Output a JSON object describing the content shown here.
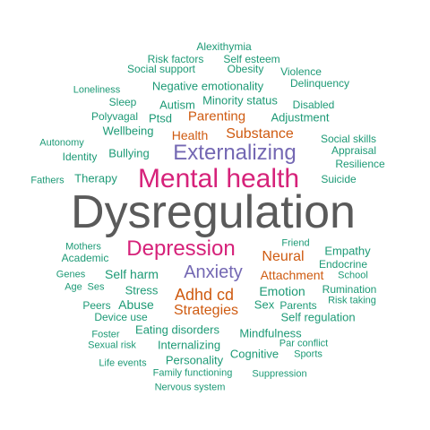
{
  "colors": {
    "gray": "#5a5a5a",
    "pink": "#d6227a",
    "purple": "#7468b3",
    "orange": "#cf5b11",
    "green": "#1d9a76"
  },
  "words": [
    {
      "text": "Dysregulation",
      "color": "gray"
    },
    {
      "text": "Mental health",
      "color": "pink"
    },
    {
      "text": "Depression",
      "color": "pink"
    },
    {
      "text": "Externalizing",
      "color": "purple"
    },
    {
      "text": "Anxiety",
      "color": "purple"
    },
    {
      "text": "Adhd cd",
      "color": "orange"
    },
    {
      "text": "Strategies",
      "color": "orange"
    },
    {
      "text": "Neural",
      "color": "orange"
    },
    {
      "text": "Attachment",
      "color": "orange"
    },
    {
      "text": "Substance",
      "color": "orange"
    },
    {
      "text": "Parenting",
      "color": "orange"
    },
    {
      "text": "Health",
      "color": "orange"
    },
    {
      "text": "Alexithymia",
      "color": "green"
    },
    {
      "text": "Risk factors",
      "color": "green"
    },
    {
      "text": "Self esteem",
      "color": "green"
    },
    {
      "text": "Social support",
      "color": "green"
    },
    {
      "text": "Obesity",
      "color": "green"
    },
    {
      "text": "Violence",
      "color": "green"
    },
    {
      "text": "Delinquency",
      "color": "green"
    },
    {
      "text": "Negative emotionality",
      "color": "green"
    },
    {
      "text": "Loneliness",
      "color": "green"
    },
    {
      "text": "Sleep",
      "color": "green"
    },
    {
      "text": "Autism",
      "color": "green"
    },
    {
      "text": "Minority status",
      "color": "green"
    },
    {
      "text": "Disabled",
      "color": "green"
    },
    {
      "text": "Polyvagal",
      "color": "green"
    },
    {
      "text": "Ptsd",
      "color": "green"
    },
    {
      "text": "Adjustment",
      "color": "green"
    },
    {
      "text": "Wellbeing",
      "color": "green"
    },
    {
      "text": "Autonomy",
      "color": "green"
    },
    {
      "text": "Social skills",
      "color": "green"
    },
    {
      "text": "Appraisal",
      "color": "green"
    },
    {
      "text": "Identity",
      "color": "green"
    },
    {
      "text": "Bullying",
      "color": "green"
    },
    {
      "text": "Resilience",
      "color": "green"
    },
    {
      "text": "Fathers",
      "color": "green"
    },
    {
      "text": "Therapy",
      "color": "green"
    },
    {
      "text": "Suicide",
      "color": "green"
    },
    {
      "text": "Friend",
      "color": "green"
    },
    {
      "text": "Mothers",
      "color": "green"
    },
    {
      "text": "Empathy",
      "color": "green"
    },
    {
      "text": "Academic",
      "color": "green"
    },
    {
      "text": "Endocrine",
      "color": "green"
    },
    {
      "text": "Self harm",
      "color": "green"
    },
    {
      "text": "Genes",
      "color": "green"
    },
    {
      "text": "School",
      "color": "green"
    },
    {
      "text": "Age",
      "color": "green"
    },
    {
      "text": "Ses",
      "color": "green"
    },
    {
      "text": "Stress",
      "color": "green"
    },
    {
      "text": "Emotion",
      "color": "green"
    },
    {
      "text": "Rumination",
      "color": "green"
    },
    {
      "text": "Peers",
      "color": "green"
    },
    {
      "text": "Abuse",
      "color": "green"
    },
    {
      "text": "Sex",
      "color": "green"
    },
    {
      "text": "Parents",
      "color": "green"
    },
    {
      "text": "Risk taking",
      "color": "green"
    },
    {
      "text": "Device use",
      "color": "green"
    },
    {
      "text": "Self regulation",
      "color": "green"
    },
    {
      "text": "Eating disorders",
      "color": "green"
    },
    {
      "text": "Mindfulness",
      "color": "green"
    },
    {
      "text": "Foster",
      "color": "green"
    },
    {
      "text": "Internalizing",
      "color": "green"
    },
    {
      "text": "Par conflict",
      "color": "green"
    },
    {
      "text": "Sexual risk",
      "color": "green"
    },
    {
      "text": "Cognitive",
      "color": "green"
    },
    {
      "text": "Sports",
      "color": "green"
    },
    {
      "text": "Personality",
      "color": "green"
    },
    {
      "text": "Life events",
      "color": "green"
    },
    {
      "text": "Family functioning",
      "color": "green"
    },
    {
      "text": "Suppression",
      "color": "green"
    },
    {
      "text": "Nervous system",
      "color": "green"
    }
  ]
}
